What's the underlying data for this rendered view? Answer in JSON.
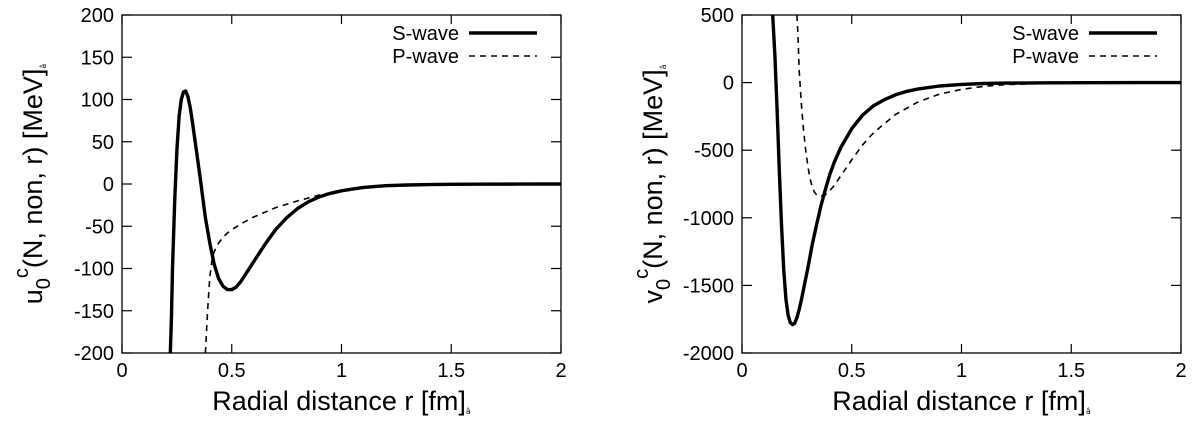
{
  "chart_data": [
    {
      "type": "line",
      "xlabel": "Radial distance r [fm]",
      "ylabel": "u0c(N, non, r) [MeV]",
      "xlim": [
        0,
        2
      ],
      "ylim": [
        -200,
        200
      ],
      "x_ticks": [
        "0",
        "0.5",
        "1",
        "1.5",
        "2"
      ],
      "y_ticks": [
        "200",
        "150",
        "100",
        "50",
        "0",
        "-50",
        "-100",
        "-150",
        "-200"
      ],
      "legend_position": "top-right",
      "legend_entries": [
        "S-wave",
        "P-wave"
      ],
      "series": [
        {
          "name": "S-wave",
          "style": "solid",
          "x": [
            0.22,
            0.225,
            0.23,
            0.24,
            0.25,
            0.26,
            0.27,
            0.28,
            0.29,
            0.3,
            0.31,
            0.32,
            0.34,
            0.36,
            0.38,
            0.4,
            0.42,
            0.44,
            0.46,
            0.48,
            0.5,
            0.52,
            0.54,
            0.56,
            0.6,
            0.65,
            0.7,
            0.75,
            0.8,
            0.85,
            0.9,
            0.95,
            1.0,
            1.05,
            1.1,
            1.2,
            1.3,
            1.4,
            1.5,
            1.6,
            1.8,
            2.0
          ],
          "y": [
            -200,
            -160,
            -100,
            -20,
            40,
            80,
            100,
            109,
            110,
            104,
            92,
            75,
            38,
            0,
            -40,
            -70,
            -95,
            -112,
            -121,
            -125,
            -125,
            -122,
            -116,
            -108,
            -92,
            -72,
            -54,
            -40,
            -29,
            -21,
            -15,
            -11,
            -8,
            -6,
            -4,
            -2,
            -1.2,
            -0.7,
            -0.4,
            -0.2,
            -0.1,
            0
          ]
        },
        {
          "name": "P-wave",
          "style": "dashed",
          "x": [
            0.38,
            0.39,
            0.4,
            0.41,
            0.42,
            0.44,
            0.46,
            0.48,
            0.5,
            0.55,
            0.6,
            0.7,
            0.8,
            0.9,
            1.0,
            1.1,
            1.2,
            1.3,
            1.4,
            1.5,
            1.6,
            1.8,
            2.0
          ],
          "y": [
            -200,
            -150,
            -110,
            -90,
            -80,
            -70,
            -63,
            -58,
            -54,
            -46,
            -39,
            -28,
            -20,
            -13,
            -8,
            -5,
            -3,
            -1.8,
            -1,
            -0.6,
            -0.3,
            -0.1,
            0
          ]
        }
      ]
    },
    {
      "type": "line",
      "xlabel": "Radial distance r [fm]",
      "ylabel": "v0c(N, non, r) [MeV]",
      "xlim": [
        0,
        2
      ],
      "ylim": [
        -2000,
        500
      ],
      "x_ticks": [
        "0",
        "0.5",
        "1",
        "1.5",
        "2"
      ],
      "y_ticks": [
        "500",
        "0",
        "-500",
        "-1000",
        "-1500",
        "-2000"
      ],
      "legend_position": "top-right",
      "legend_entries": [
        "S-wave",
        "P-wave"
      ],
      "series": [
        {
          "name": "S-wave",
          "style": "solid",
          "x": [
            0.14,
            0.15,
            0.16,
            0.17,
            0.18,
            0.19,
            0.2,
            0.21,
            0.22,
            0.23,
            0.24,
            0.25,
            0.26,
            0.27,
            0.28,
            0.3,
            0.32,
            0.34,
            0.36,
            0.38,
            0.4,
            0.42,
            0.45,
            0.5,
            0.55,
            0.6,
            0.65,
            0.7,
            0.75,
            0.8,
            0.9,
            1.0,
            1.1,
            1.2,
            1.4,
            1.6,
            1.8,
            2.0
          ],
          "y": [
            500,
            200,
            -200,
            -650,
            -1050,
            -1380,
            -1600,
            -1720,
            -1775,
            -1790,
            -1780,
            -1740,
            -1680,
            -1610,
            -1530,
            -1370,
            -1200,
            -1050,
            -910,
            -790,
            -680,
            -590,
            -480,
            -340,
            -240,
            -170,
            -125,
            -90,
            -65,
            -48,
            -25,
            -13,
            -7,
            -4,
            -1.5,
            -0.6,
            -0.2,
            0
          ]
        },
        {
          "name": "P-wave",
          "style": "dashed",
          "x": [
            0.25,
            0.255,
            0.26,
            0.27,
            0.28,
            0.29,
            0.3,
            0.31,
            0.32,
            0.33,
            0.34,
            0.35,
            0.36,
            0.38,
            0.4,
            0.42,
            0.45,
            0.5,
            0.55,
            0.6,
            0.7,
            0.8,
            0.9,
            1.0,
            1.1,
            1.2,
            1.4,
            1.6,
            2.0
          ],
          "y": [
            500,
            350,
            100,
            -150,
            -350,
            -500,
            -620,
            -710,
            -770,
            -810,
            -830,
            -840,
            -840,
            -830,
            -800,
            -760,
            -690,
            -570,
            -460,
            -370,
            -235,
            -145,
            -85,
            -50,
            -28,
            -15,
            -5,
            -2,
            0
          ]
        }
      ]
    }
  ]
}
